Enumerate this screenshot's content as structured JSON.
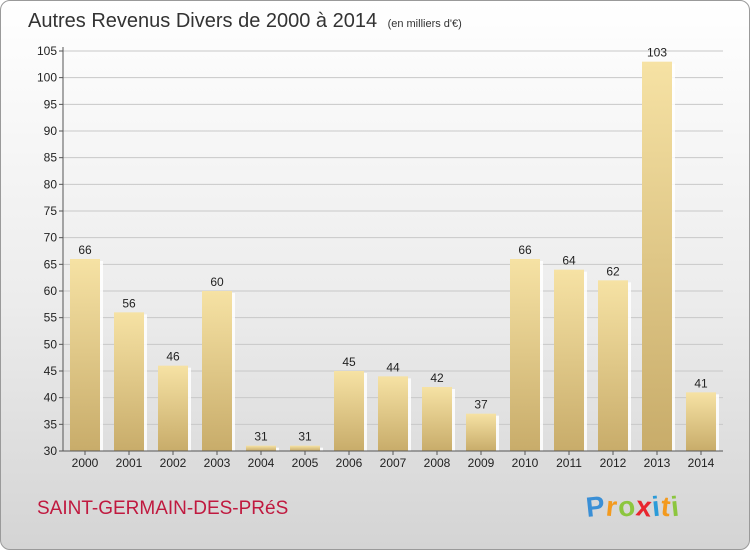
{
  "title": "Autres Revenus Divers de 2000 à 2014",
  "subtitle": "(en milliers d'€)",
  "commune": "SAINT-GERMAIN-DES-PRéS",
  "logo": {
    "letters": [
      "P",
      "r",
      "o",
      "x",
      "i",
      "t",
      "i"
    ],
    "colors": [
      "#3a8fd6",
      "#f39a1e",
      "#8cc63f",
      "#e8262f",
      "#2b9bd8",
      "#f39a1e",
      "#8cc63f"
    ]
  },
  "colors": {
    "bar_light": "#f6e2a4",
    "bar_dark": "#c8ac6a",
    "title": "#333333",
    "commune": "#c0193f"
  },
  "chart_data": {
    "type": "bar",
    "categories": [
      "2000",
      "2001",
      "2002",
      "2003",
      "2004",
      "2005",
      "2006",
      "2007",
      "2008",
      "2009",
      "2010",
      "2011",
      "2012",
      "2013",
      "2014"
    ],
    "values": [
      66,
      56,
      46,
      60,
      31,
      31,
      45,
      44,
      42,
      37,
      66,
      64,
      62,
      103,
      41
    ],
    "yticks": [
      30,
      35,
      40,
      45,
      50,
      55,
      60,
      65,
      70,
      75,
      80,
      85,
      90,
      95,
      100,
      105
    ],
    "ylim": [
      30,
      105
    ],
    "grid": true
  }
}
